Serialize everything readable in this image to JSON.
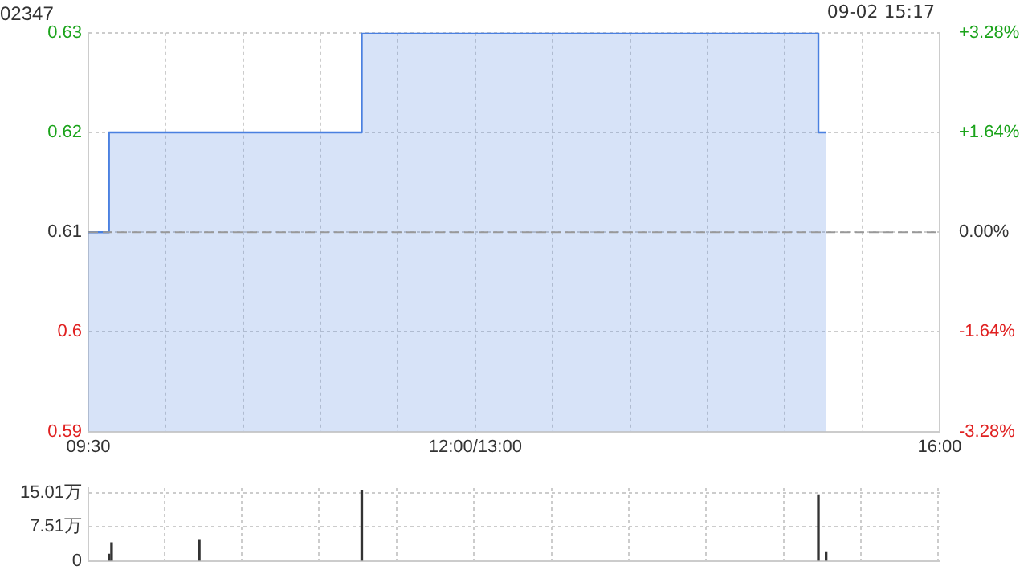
{
  "chart_data": [
    {
      "type": "area",
      "title": "02347",
      "annotations": [
        "09-02 15:17"
      ],
      "categories": [
        "09:30",
        null,
        null,
        null,
        null,
        null,
        null,
        null,
        null,
        null,
        null,
        null,
        null,
        null,
        null,
        null,
        null,
        null,
        null,
        null,
        null,
        null,
        null,
        null,
        null,
        null,
        null,
        null,
        null,
        null,
        null,
        null,
        null,
        null,
        null,
        null,
        null,
        null,
        null,
        null,
        null,
        null,
        null,
        null,
        null,
        null,
        null,
        null,
        null,
        null,
        null,
        null,
        null,
        null,
        null,
        null,
        null,
        null,
        null,
        null,
        null,
        null,
        null,
        null,
        null,
        null,
        null,
        null,
        null,
        null,
        null,
        null,
        null,
        null,
        null,
        null,
        null,
        null,
        null,
        null,
        null,
        null,
        null,
        null,
        null,
        null,
        null,
        null,
        null,
        null,
        null,
        null,
        null,
        null,
        null,
        null,
        null,
        null,
        null,
        null,
        null,
        null,
        null,
        null,
        null,
        null,
        null,
        null,
        null,
        null,
        null,
        null,
        null,
        null,
        null,
        null,
        null,
        null,
        null,
        null,
        null,
        null,
        null,
        null,
        null,
        null,
        null,
        null,
        null,
        null,
        null,
        null,
        null,
        null,
        null,
        null,
        null,
        null,
        null,
        null,
        null,
        null,
        null,
        null,
        null,
        null,
        null,
        null,
        null,
        null,
        "12:00/13:00",
        null,
        null,
        null,
        null,
        null,
        null,
        null,
        null,
        null,
        null,
        null,
        null,
        null,
        null,
        null,
        null,
        null,
        null,
        null,
        null,
        null,
        null,
        null,
        null,
        null,
        null,
        null,
        null,
        null,
        null,
        null,
        null,
        null,
        null,
        null,
        null,
        null,
        null,
        null,
        null,
        null,
        null,
        null,
        null,
        null,
        null,
        null,
        null,
        null,
        null,
        null,
        null,
        null,
        null,
        null,
        null,
        null,
        null,
        null,
        null,
        null,
        null,
        null,
        null,
        null,
        null,
        null,
        null,
        null,
        null,
        null,
        null,
        null,
        null,
        null,
        null,
        null,
        null,
        null,
        null,
        null,
        null,
        null,
        null,
        null,
        null,
        null,
        null,
        null,
        null,
        null,
        null,
        null,
        null,
        null,
        null,
        null,
        null,
        null,
        null,
        null,
        null,
        null,
        null,
        null,
        null,
        null,
        null,
        null,
        null,
        null,
        null,
        null,
        null,
        null,
        null,
        null,
        null,
        null,
        null,
        null,
        null,
        null,
        null,
        null,
        null,
        null,
        null,
        null,
        null,
        null,
        null,
        null,
        null,
        null,
        null,
        null,
        null,
        null,
        null,
        null,
        null,
        null,
        null,
        null,
        null,
        null,
        null,
        null,
        null,
        null,
        null,
        null,
        null,
        null,
        null,
        null,
        null,
        null,
        null,
        null,
        null,
        null,
        null,
        null,
        null,
        null,
        null,
        null,
        null,
        null,
        null,
        null,
        null,
        null,
        null,
        null,
        null,
        null,
        "16:00"
      ],
      "series": [
        {
          "color": "#4a80e0",
          "values": [
            0.61,
            0.61,
            0.61,
            0.61,
            0.61,
            0.61,
            0.61,
            0.61,
            0.62,
            0.62,
            0.62,
            0.62,
            0.62,
            0.62,
            0.62,
            0.62,
            0.62,
            0.62,
            0.62,
            0.62,
            0.62,
            0.62,
            0.62,
            0.62,
            0.62,
            0.62,
            0.62,
            0.62,
            0.62,
            0.62,
            0.62,
            0.62,
            0.62,
            0.62,
            0.62,
            0.62,
            0.62,
            0.62,
            0.62,
            0.62,
            0.62,
            0.62,
            0.62,
            0.62,
            0.62,
            0.62,
            0.62,
            0.62,
            0.62,
            0.62,
            0.62,
            0.62,
            0.62,
            0.62,
            0.62,
            0.62,
            0.62,
            0.62,
            0.62,
            0.62,
            0.62,
            0.62,
            0.62,
            0.62,
            0.62,
            0.62,
            0.62,
            0.62,
            0.62,
            0.62,
            0.62,
            0.62,
            0.62,
            0.62,
            0.62,
            0.62,
            0.62,
            0.62,
            0.62,
            0.62,
            0.62,
            0.62,
            0.62,
            0.62,
            0.62,
            0.62,
            0.62,
            0.62,
            0.62,
            0.62,
            0.62,
            0.62,
            0.62,
            0.62,
            0.62,
            0.62,
            0.62,
            0.62,
            0.62,
            0.62,
            0.62,
            0.62,
            0.62,
            0.62,
            0.62,
            0.62,
            0.63,
            0.63,
            0.63,
            0.63,
            0.63,
            0.63,
            0.63,
            0.63,
            0.63,
            0.63,
            0.63,
            0.63,
            0.63,
            0.63,
            0.63,
            0.63,
            0.63,
            0.63,
            0.63,
            0.63,
            0.63,
            0.63,
            0.63,
            0.63,
            0.63,
            0.63,
            0.63,
            0.63,
            0.63,
            0.63,
            0.63,
            0.63,
            0.63,
            0.63,
            0.63,
            0.63,
            0.63,
            0.63,
            0.63,
            0.63,
            0.63,
            0.63,
            0.63,
            0.63,
            0.63,
            0.63,
            0.63,
            0.63,
            0.63,
            0.63,
            0.63,
            0.63,
            0.63,
            0.63,
            0.63,
            0.63,
            0.63,
            0.63,
            0.63,
            0.63,
            0.63,
            0.63,
            0.63,
            0.63,
            0.63,
            0.63,
            0.63,
            0.63,
            0.63,
            0.63,
            0.63,
            0.63,
            0.63,
            0.63,
            0.63,
            0.63,
            0.63,
            0.63,
            0.63,
            0.63,
            0.63,
            0.63,
            0.63,
            0.63,
            0.63,
            0.63,
            0.63,
            0.63,
            0.63,
            0.63,
            0.63,
            0.63,
            0.63,
            0.63,
            0.63,
            0.63,
            0.63,
            0.63,
            0.63,
            0.63,
            0.63,
            0.63,
            0.63,
            0.63,
            0.63,
            0.63,
            0.63,
            0.63,
            0.63,
            0.63,
            0.63,
            0.63,
            0.63,
            0.63,
            0.63,
            0.63,
            0.63,
            0.63,
            0.63,
            0.63,
            0.63,
            0.63,
            0.63,
            0.63,
            0.63,
            0.63,
            0.63,
            0.63,
            0.63,
            0.63,
            0.63,
            0.63,
            0.63,
            0.63,
            0.63,
            0.63,
            0.63,
            0.63,
            0.63,
            0.63,
            0.63,
            0.63,
            0.63,
            0.63,
            0.63,
            0.63,
            0.63,
            0.63,
            0.63,
            0.63,
            0.63,
            0.63,
            0.63,
            0.63,
            0.63,
            0.63,
            0.63,
            0.63,
            0.63,
            0.63,
            0.63,
            0.63,
            0.63,
            0.63,
            0.63,
            0.63,
            0.63,
            0.63,
            0.63,
            0.63,
            0.63,
            0.63,
            0.63,
            0.63,
            0.63,
            0.63,
            0.63,
            0.62,
            0.62,
            0.62,
            0.62,
            null,
            null,
            null,
            null,
            null,
            null,
            null,
            null,
            null,
            null,
            null,
            null,
            null,
            null,
            null,
            null,
            null,
            null,
            null,
            null,
            null,
            null,
            null,
            null,
            null,
            null,
            null,
            null,
            null,
            null,
            null,
            null,
            null,
            null,
            null,
            null,
            null,
            null,
            null,
            null,
            null,
            null,
            null,
            null
          ]
        }
      ],
      "ylim": [
        0.59,
        0.63
      ],
      "yticks": [
        0.59,
        0.6,
        0.61,
        0.62,
        0.63
      ],
      "y2lim": [
        -3.28,
        3.28
      ],
      "y2ticks": [
        {
          "value": -3.28,
          "label": "-3.28%"
        },
        {
          "value": -1.64,
          "label": "-1.64%"
        },
        {
          "value": 0,
          "label": "0.00%"
        },
        {
          "value": 1.64,
          "label": "+1.64%"
        },
        {
          "value": 3.28,
          "label": "+3.28%"
        }
      ],
      "ref_lines": [
        {
          "axis": "y",
          "value": 0.61,
          "color": "#999999",
          "line_style": "dashed"
        }
      ],
      "line_style": "solid",
      "grid": true,
      "legend": false
    },
    {
      "type": "bar",
      "categories": [
        null,
        null,
        null,
        null,
        null,
        null,
        null,
        null,
        null,
        null,
        null,
        null,
        null,
        null,
        null,
        null,
        null,
        null,
        null,
        null,
        null,
        null,
        null,
        null,
        null,
        null,
        null,
        null,
        null,
        null,
        null,
        null,
        null,
        null,
        null,
        null,
        null,
        null,
        null,
        null,
        null,
        null,
        null,
        null,
        null,
        null,
        null,
        null,
        null,
        null,
        null,
        null,
        null,
        null,
        null,
        null,
        null,
        null,
        null,
        null,
        null,
        null,
        null,
        null,
        null,
        null,
        null,
        null,
        null,
        null,
        null,
        null,
        null,
        null,
        null,
        null,
        null,
        null,
        null,
        null,
        null,
        null,
        null,
        null,
        null,
        null,
        null,
        null,
        null,
        null,
        null,
        null,
        null,
        null,
        null,
        null,
        null,
        null,
        null,
        null,
        null,
        null,
        null,
        null,
        null,
        null,
        null,
        null,
        null,
        null,
        null,
        null,
        null,
        null,
        null,
        null,
        null,
        null,
        null,
        null,
        null,
        null,
        null,
        null,
        null,
        null,
        null,
        null,
        null,
        null,
        null,
        null,
        null,
        null,
        null,
        null,
        null,
        null,
        null,
        null,
        null,
        null,
        null,
        null,
        null,
        null,
        null,
        null,
        null,
        null,
        null,
        null,
        null,
        null,
        null,
        null,
        null,
        null,
        null,
        null,
        null,
        null,
        null,
        null,
        null,
        null,
        null,
        null,
        null,
        null,
        null,
        null,
        null,
        null,
        null,
        null,
        null,
        null,
        null,
        null,
        null,
        null,
        null,
        null,
        null,
        null,
        null,
        null,
        null,
        null,
        null,
        null,
        null,
        null,
        null,
        null,
        null,
        null,
        null,
        null,
        null,
        null,
        null,
        null,
        null,
        null,
        null,
        null,
        null,
        null,
        null,
        null,
        null,
        null,
        null,
        null,
        null,
        null,
        null,
        null,
        null,
        null,
        null,
        null,
        null,
        null,
        null,
        null,
        null,
        null,
        null,
        null,
        null,
        null,
        null,
        null,
        null,
        null,
        null,
        null,
        null,
        null,
        null,
        null,
        null,
        null,
        null,
        null,
        null,
        null,
        null,
        null,
        null,
        null,
        null,
        null,
        null,
        null,
        null,
        null,
        null,
        null,
        null,
        null,
        null,
        null,
        null,
        null,
        null,
        null,
        null,
        null,
        null,
        null,
        null,
        null,
        null,
        null,
        null,
        null,
        null,
        null,
        null,
        null,
        null,
        null,
        null,
        null,
        null,
        null,
        null,
        null,
        null,
        null,
        null,
        null,
        null,
        null,
        null,
        null,
        null,
        null,
        null,
        null,
        null,
        null,
        null,
        null,
        null,
        null,
        null,
        null,
        null,
        null,
        null,
        null,
        null,
        null,
        null,
        null,
        null,
        null,
        null,
        null,
        null,
        null,
        null,
        null,
        null,
        null,
        null
      ],
      "series": [
        {
          "color": "#333333",
          "values": [
            null,
            null,
            null,
            null,
            null,
            null,
            null,
            null,
            1.5,
            4,
            null,
            null,
            null,
            null,
            null,
            null,
            null,
            null,
            null,
            null,
            null,
            null,
            null,
            null,
            null,
            null,
            null,
            null,
            null,
            null,
            null,
            null,
            null,
            null,
            null,
            null,
            null,
            null,
            null,
            null,
            null,
            null,
            null,
            4.5,
            null,
            null,
            null,
            null,
            null,
            null,
            null,
            null,
            null,
            null,
            null,
            null,
            null,
            null,
            null,
            null,
            null,
            null,
            null,
            null,
            null,
            null,
            null,
            null,
            null,
            null,
            null,
            null,
            null,
            null,
            null,
            null,
            null,
            null,
            null,
            null,
            null,
            null,
            null,
            null,
            null,
            null,
            null,
            null,
            null,
            null,
            null,
            null,
            null,
            null,
            null,
            null,
            null,
            null,
            null,
            null,
            null,
            null,
            null,
            null,
            null,
            null,
            15.5,
            null,
            null,
            null,
            null,
            null,
            null,
            null,
            null,
            null,
            null,
            null,
            null,
            null,
            null,
            null,
            null,
            null,
            null,
            null,
            null,
            null,
            null,
            null,
            null,
            null,
            null,
            null,
            null,
            null,
            null,
            null,
            null,
            null,
            null,
            null,
            null,
            null,
            null,
            null,
            null,
            null,
            null,
            null,
            null,
            null,
            null,
            null,
            null,
            null,
            null,
            null,
            null,
            null,
            null,
            null,
            null,
            null,
            null,
            null,
            null,
            null,
            null,
            null,
            null,
            null,
            null,
            null,
            null,
            null,
            null,
            null,
            null,
            null,
            null,
            null,
            null,
            null,
            null,
            null,
            null,
            null,
            null,
            null,
            null,
            null,
            null,
            null,
            null,
            null,
            null,
            null,
            null,
            null,
            null,
            null,
            null,
            null,
            null,
            null,
            null,
            null,
            null,
            null,
            null,
            null,
            null,
            null,
            null,
            null,
            null,
            null,
            null,
            null,
            null,
            null,
            null,
            null,
            null,
            null,
            null,
            null,
            null,
            null,
            null,
            null,
            null,
            null,
            null,
            null,
            null,
            null,
            null,
            null,
            null,
            null,
            null,
            null,
            null,
            null,
            null,
            null,
            null,
            null,
            null,
            null,
            null,
            null,
            null,
            null,
            null,
            null,
            null,
            null,
            null,
            null,
            null,
            null,
            null,
            null,
            null,
            null,
            null,
            null,
            null,
            null,
            null,
            null,
            null,
            null,
            null,
            null,
            null,
            null,
            null,
            null,
            null,
            14.5,
            null,
            null,
            2,
            null,
            null,
            null,
            null,
            null,
            null,
            null,
            null,
            null,
            null,
            null,
            null,
            null,
            null,
            null,
            null,
            null,
            null,
            null,
            null,
            null,
            null,
            null,
            null,
            null,
            null,
            null,
            null,
            null,
            null,
            null,
            null,
            null,
            null,
            null,
            null,
            null,
            null,
            null,
            null,
            null,
            null,
            null,
            null
          ]
        }
      ],
      "ylim": [
        0,
        16
      ],
      "yticks": [
        0,
        {
          "value": 7.51,
          "label": "7.51万"
        },
        {
          "value": 15.01,
          "label": "15.01万"
        }
      ],
      "grid": true,
      "legend": false
    }
  ]
}
